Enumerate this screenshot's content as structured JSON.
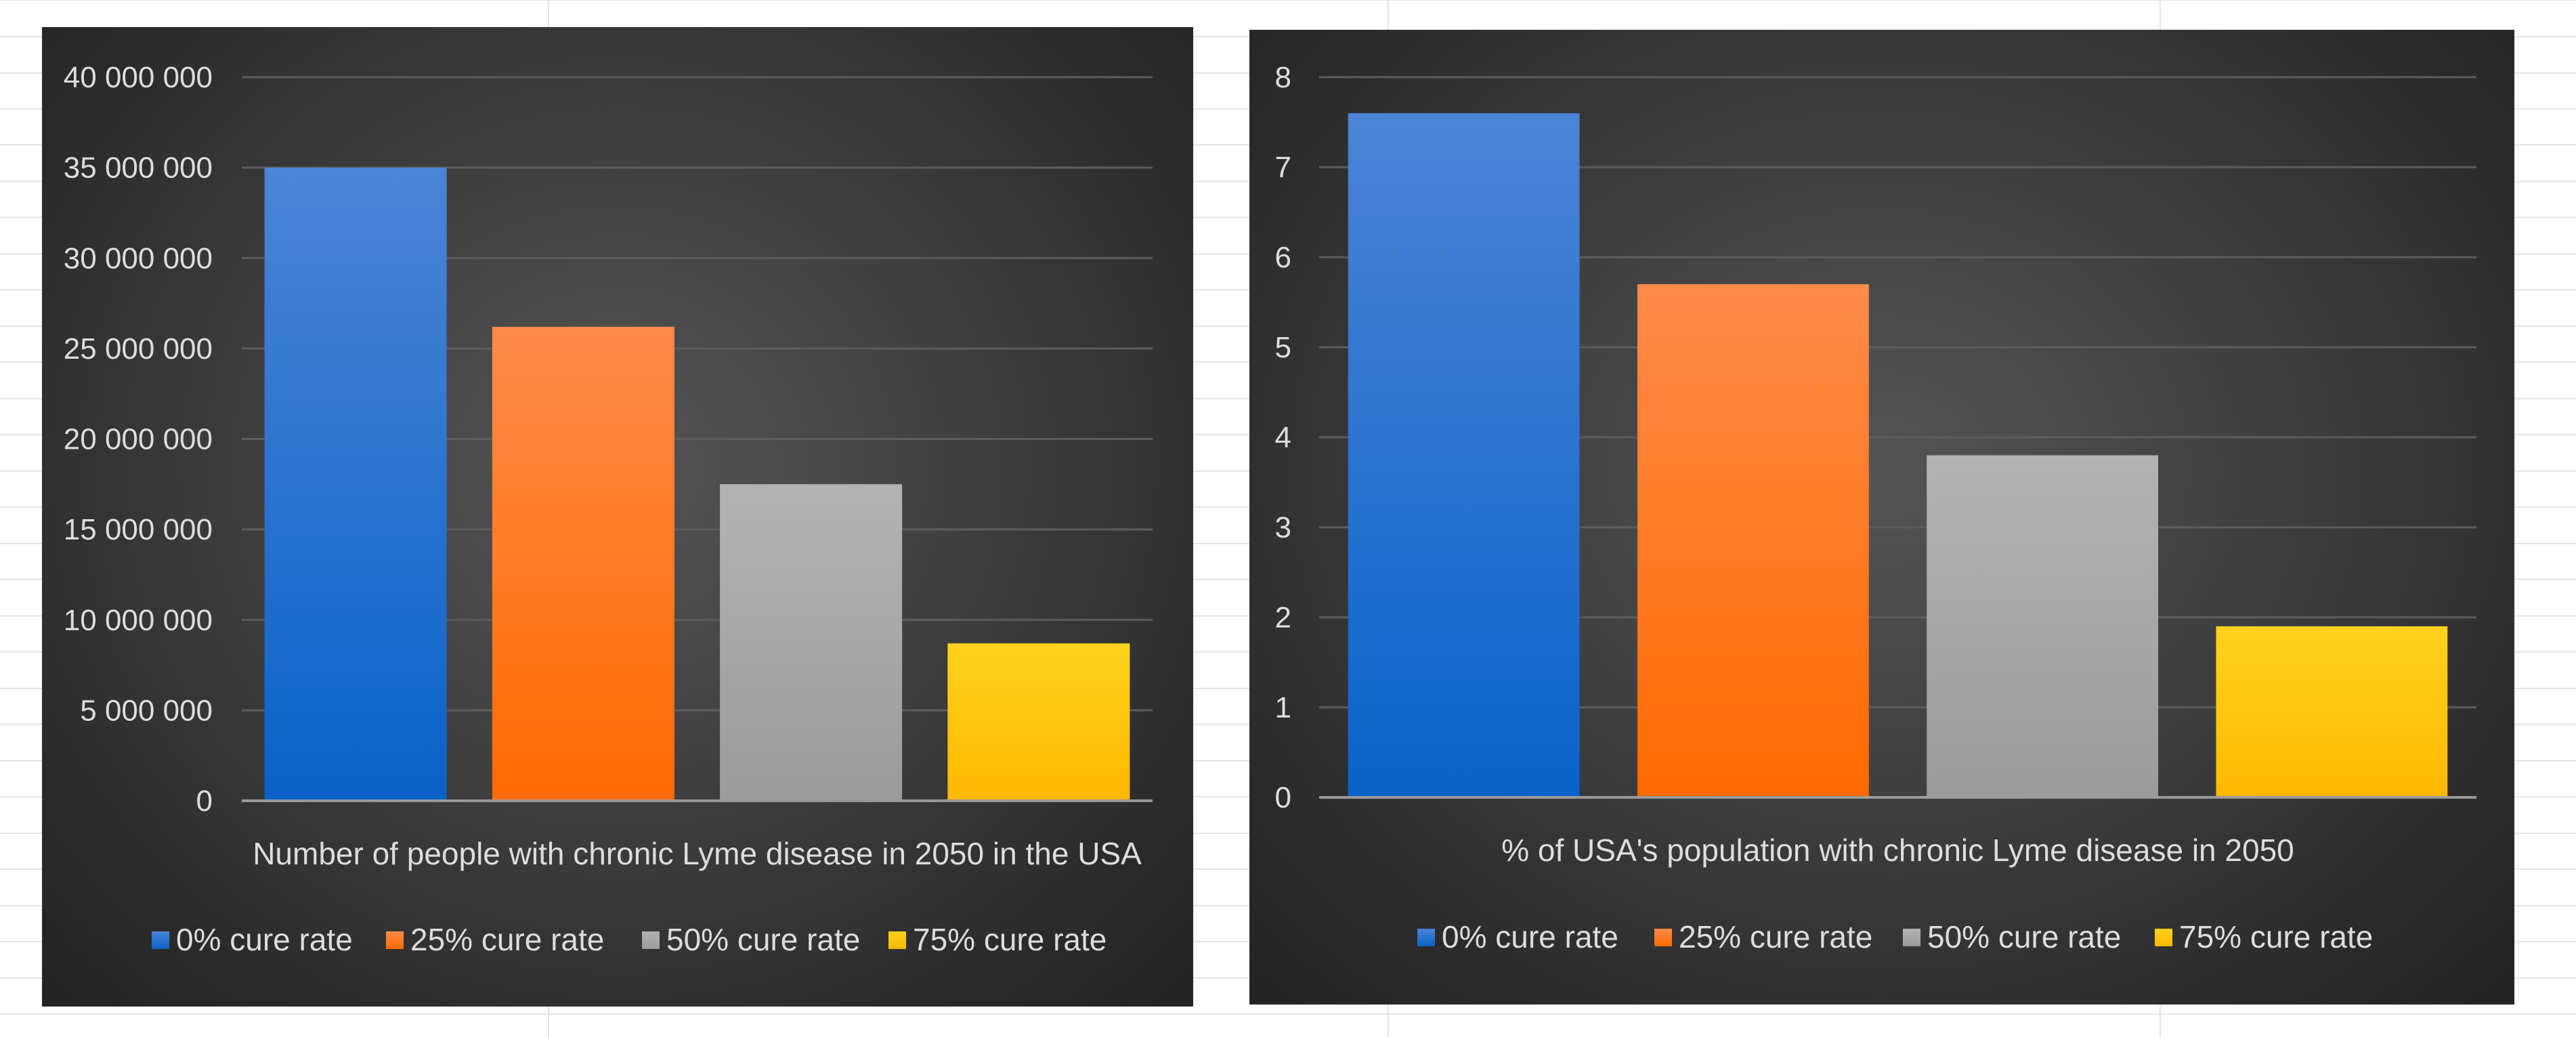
{
  "colors": {
    "sheet_background": "#ffffff",
    "sheet_gridline": "#e3e3e3",
    "chart_text": "#dddddd",
    "chart_gridline": "#5d5d5d",
    "chart_axis_line": "#9a9a9a",
    "series": [
      {
        "top": "#4a85d6",
        "bottom": "#0a62c9"
      },
      {
        "top": "#ff8b4a",
        "bottom": "#ff6a00"
      },
      {
        "top": "#b3b3b3",
        "bottom": "#9b9b9b"
      },
      {
        "top": "#ffd21c",
        "bottom": "#ffb800"
      }
    ]
  },
  "chart_data": [
    {
      "type": "bar",
      "categories": [
        "0% cure rate",
        "25% cure rate",
        "50% cure rate",
        "75% cure rate"
      ],
      "values": [
        35000000,
        26200000,
        17500000,
        8700000
      ],
      "xlabel": "Number of people with chronic Lyme disease in 2050 in the USA",
      "ylabel": "",
      "ylim": [
        0,
        40000000
      ],
      "yticks": [
        "0",
        "5 000 000",
        "10 000 000",
        "15 000 000",
        "20 000 000",
        "25 000 000",
        "30 000 000",
        "35 000 000",
        "40 000 000"
      ],
      "legend": [
        "0% cure rate",
        "25% cure rate",
        "50% cure rate",
        "75% cure rate"
      ],
      "legend_position": "bottom",
      "grid": true
    },
    {
      "type": "bar",
      "categories": [
        "0% cure rate",
        "25% cure rate",
        "50% cure rate",
        "75% cure rate"
      ],
      "values": [
        7.6,
        5.7,
        3.8,
        1.9
      ],
      "xlabel": "% of USA's population with chronic Lyme disease in 2050",
      "ylabel": "",
      "ylim": [
        0,
        8
      ],
      "yticks": [
        "0",
        "1",
        "2",
        "3",
        "4",
        "5",
        "6",
        "7",
        "8"
      ],
      "legend": [
        "0% cure rate",
        "25% cure rate",
        "50% cure rate",
        "75% cure rate"
      ],
      "legend_position": "bottom",
      "grid": true
    }
  ]
}
